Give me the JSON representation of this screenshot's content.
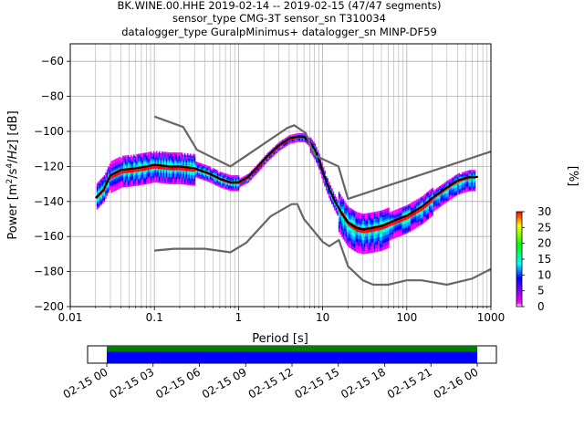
{
  "title": {
    "line1": "BK.WINE.00.HHE   2019-02-14 -- 2019-02-15  (47/47 segments)",
    "line2": "sensor_type CMG-3T sensor_sn T310034",
    "line3": "datalogger_type GuralpMinimus+ datalogger_sn MINP-DF59"
  },
  "chart_data": {
    "type": "heatmap",
    "xlabel": "Period [s]",
    "ylabel": "Power [m²/s⁴/Hz] [dB]",
    "xscale": "log",
    "xlim": [
      0.01,
      1000
    ],
    "ylim": [
      -200,
      -50
    ],
    "xticks": [
      0.01,
      0.1,
      1,
      10,
      100,
      1000
    ],
    "xtick_labels": [
      "0.01",
      "0.1",
      "1",
      "10",
      "100",
      "1000"
    ],
    "yticks": [
      -200,
      -180,
      -160,
      -140,
      -120,
      -100,
      -80,
      -60
    ],
    "ytick_labels": [
      "−200",
      "−180",
      "−160",
      "−140",
      "−120",
      "−100",
      "−80",
      "−60"
    ],
    "grid": true,
    "series": [
      {
        "name": "",
        "color": "#000000",
        "points": [
          [
            0.02,
            -138
          ],
          [
            0.025,
            -133
          ],
          [
            0.03,
            -125
          ],
          [
            0.04,
            -122
          ],
          [
            0.06,
            -121
          ],
          [
            0.08,
            -120
          ],
          [
            0.1,
            -119
          ],
          [
            0.15,
            -120
          ],
          [
            0.2,
            -120
          ],
          [
            0.3,
            -121
          ],
          [
            0.45,
            -124
          ],
          [
            0.6,
            -127
          ],
          [
            0.8,
            -129
          ],
          [
            1,
            -129
          ],
          [
            1.3,
            -126
          ],
          [
            1.7,
            -120
          ],
          [
            2.2,
            -114
          ],
          [
            3,
            -108
          ],
          [
            4,
            -104
          ],
          [
            5,
            -103
          ],
          [
            6,
            -103
          ],
          [
            7,
            -106
          ],
          [
            8,
            -110
          ],
          [
            9,
            -116
          ],
          [
            10,
            -123
          ],
          [
            12,
            -133
          ],
          [
            14,
            -140
          ],
          [
            17,
            -147
          ],
          [
            20,
            -152
          ],
          [
            25,
            -155
          ],
          [
            30,
            -156
          ],
          [
            40,
            -155
          ],
          [
            50,
            -154
          ],
          [
            70,
            -151
          ],
          [
            100,
            -148
          ],
          [
            150,
            -143
          ],
          [
            200,
            -138
          ],
          [
            300,
            -132
          ],
          [
            400,
            -128
          ],
          [
            550,
            -126
          ],
          [
            700,
            -126
          ]
        ]
      },
      {
        "name": "",
        "color": "#666666",
        "points": [
          [
            0.1,
            -91.5
          ],
          [
            0.22,
            -97.5
          ],
          [
            0.32,
            -110.5
          ],
          [
            0.8,
            -120
          ],
          [
            3.8,
            -98
          ],
          [
            4.6,
            -96.5
          ],
          [
            6.3,
            -101
          ],
          [
            7.9,
            -113.5
          ],
          [
            15.4,
            -120
          ],
          [
            20,
            -138.5
          ],
          [
            1000,
            -111.5
          ]
        ]
      },
      {
        "name": "",
        "color": "#666666",
        "points": [
          [
            0.1,
            -168
          ],
          [
            0.17,
            -167
          ],
          [
            0.4,
            -167
          ],
          [
            0.8,
            -169
          ],
          [
            1.24,
            -163.5
          ],
          [
            2.4,
            -148.5
          ],
          [
            4.3,
            -141.5
          ],
          [
            5,
            -141.5
          ],
          [
            6,
            -150
          ],
          [
            10,
            -163
          ],
          [
            12,
            -165.5
          ],
          [
            15.6,
            -162
          ],
          [
            20,
            -177
          ],
          [
            30,
            -185
          ],
          [
            40,
            -187.5
          ],
          [
            60,
            -187.5
          ],
          [
            100,
            -185
          ],
          [
            150,
            -185
          ],
          [
            300,
            -187.5
          ],
          [
            600,
            -184
          ],
          [
            1000,
            -178.5
          ]
        ]
      }
    ],
    "colorbar": {
      "label": "[%]",
      "min": 0,
      "max": 30,
      "ticks": [
        0,
        5,
        10,
        15,
        20,
        25,
        30
      ],
      "colors": [
        "#ffffff",
        "#ff00ff",
        "#0000ff",
        "#00ffff",
        "#00ff00",
        "#ffff00",
        "#ff0000"
      ]
    },
    "coverage": {
      "start": "2019-02-15 00:00",
      "end": "2019-02-16 00:00",
      "tick_labels": [
        "02-15 00",
        "02-15 03",
        "02-15 06",
        "02-15 09",
        "02-15 12",
        "02-15 15",
        "02-15 18",
        "02-15 21",
        "02-16 00"
      ],
      "bar_colors": [
        "#008000",
        "#0000ff"
      ]
    }
  }
}
